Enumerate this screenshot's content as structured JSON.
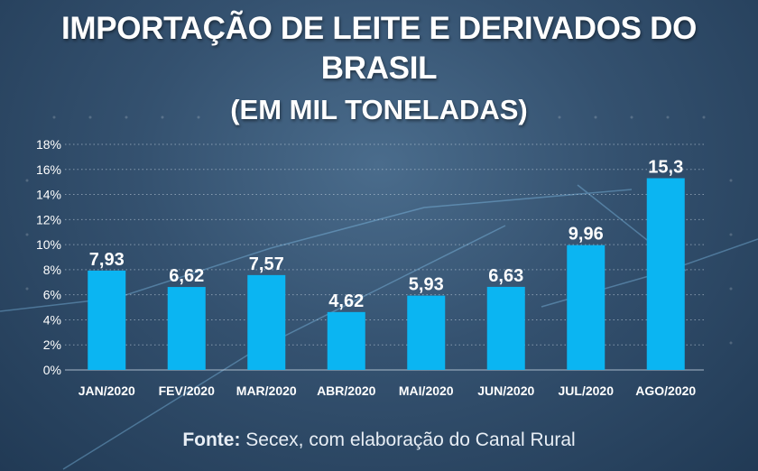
{
  "header": {
    "title": "IMPORTAÇÃO DE LEITE E DERIVADOS DO BRASIL",
    "subtitle": "(EM MIL TONELADAS)"
  },
  "source": {
    "label": "Fonte:",
    "text": " Secex, com elaboração do Canal Rural"
  },
  "colors": {
    "bar": "#0bb5f2",
    "text": "#ffffff",
    "grid": "#c9d6e3"
  },
  "chart_data": {
    "type": "bar",
    "categories": [
      "JAN/2020",
      "FEV/2020",
      "MAR/2020",
      "ABR/2020",
      "MAI/2020",
      "JUN/2020",
      "JUL/2020",
      "AGO/2020"
    ],
    "values": [
      7.93,
      6.62,
      7.57,
      4.62,
      5.93,
      6.63,
      9.96,
      15.3
    ],
    "value_labels": [
      "7,93",
      "6,62",
      "7,57",
      "4,62",
      "5,93",
      "6,63",
      "9,96",
      "15,3"
    ],
    "yticks": [
      0,
      2,
      4,
      6,
      8,
      10,
      12,
      14,
      16,
      18
    ],
    "ytick_labels": [
      "0%",
      "2%",
      "4%",
      "6%",
      "8%",
      "10%",
      "12%",
      "14%",
      "16%",
      "18%"
    ],
    "ylim": [
      0,
      18
    ],
    "grid": true,
    "legend": false
  }
}
